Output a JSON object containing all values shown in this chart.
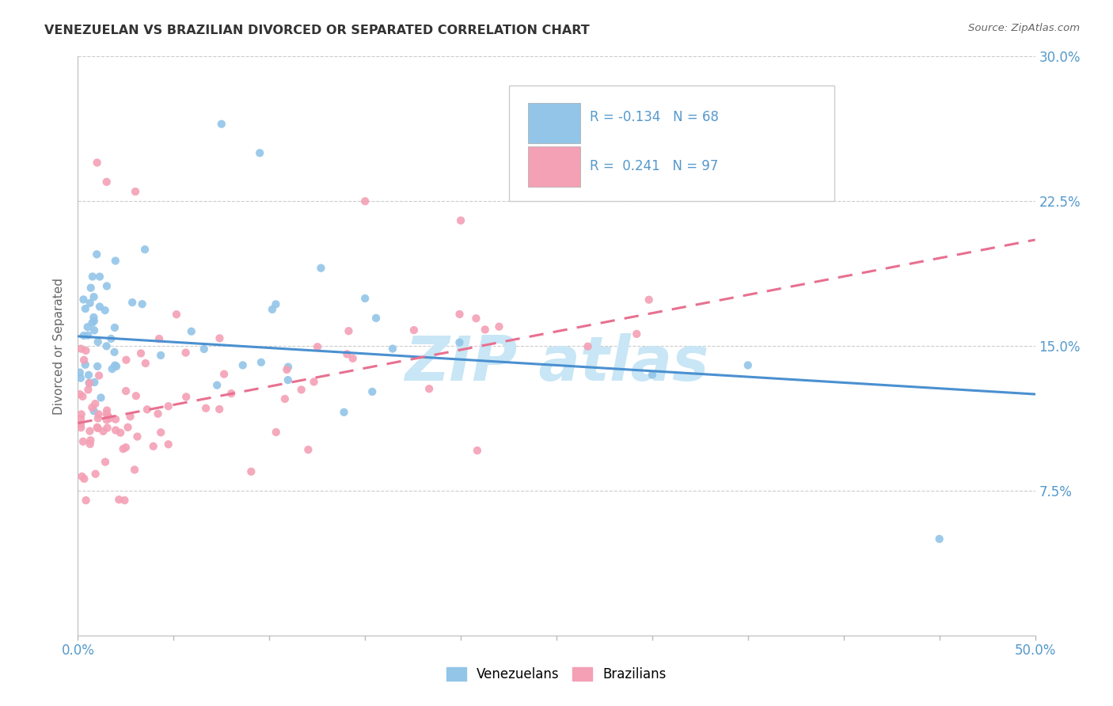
{
  "title": "VENEZUELAN VS BRAZILIAN DIVORCED OR SEPARATED CORRELATION CHART",
  "source": "Source: ZipAtlas.com",
  "ylabel": "Divorced or Separated",
  "legend_venezuelans": "Venezuelans",
  "legend_brazilians": "Brazilians",
  "r_venezuelan": "-0.134",
  "n_venezuelan": "68",
  "r_brazilian": "0.241",
  "n_brazilian": "97",
  "venezuelan_color": "#92C5E8",
  "brazilian_color": "#F4A0B5",
  "trend_venezuelan_color": "#4A90D0",
  "trend_brazilian_color": "#E87090",
  "background_color": "#FFFFFF",
  "watermark_color": "#C8E6F5",
  "xlim": [
    0.0,
    50.0
  ],
  "ylim": [
    0.0,
    30.0
  ],
  "yticks": [
    7.5,
    15.0,
    22.5,
    30.0
  ],
  "xticks": [
    0.0,
    5.0,
    10.0,
    15.0,
    20.0,
    25.0,
    30.0,
    35.0,
    40.0,
    45.0,
    50.0
  ],
  "ven_trend_x0": 0.0,
  "ven_trend_y0": 15.5,
  "ven_trend_x1": 50.0,
  "ven_trend_y1": 12.5,
  "bra_trend_x0": 0.0,
  "bra_trend_y0": 11.0,
  "bra_trend_x1": 50.0,
  "bra_trend_y1": 20.5
}
